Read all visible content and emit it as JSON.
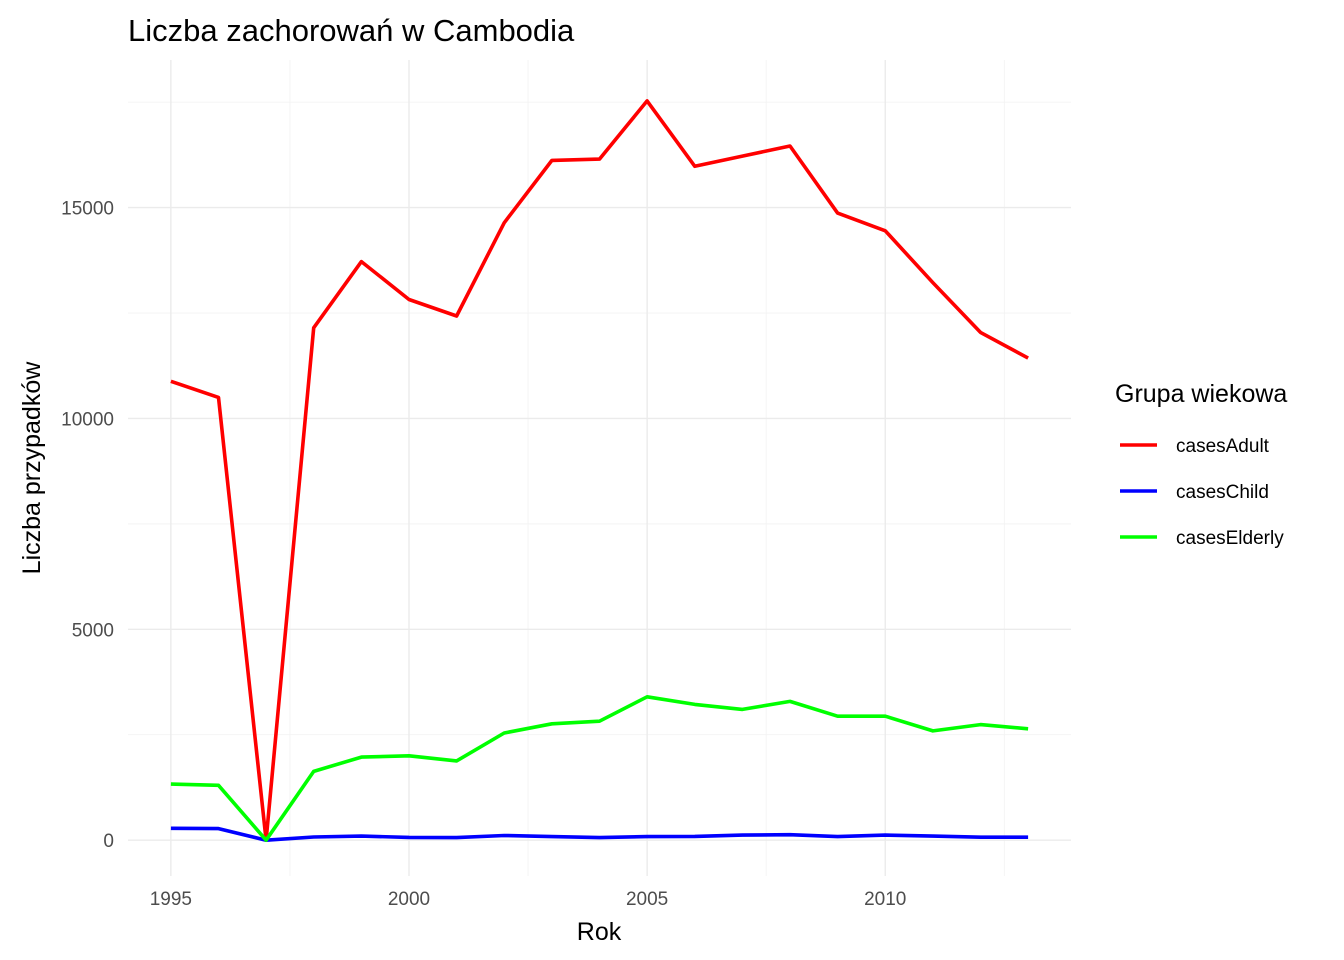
{
  "chart_data": {
    "type": "line",
    "title": "Liczba zachorowań w Cambodia",
    "xlabel": "Rok",
    "ylabel": "Liczba przypadków",
    "x": [
      1995,
      1996,
      1997,
      1998,
      1999,
      2000,
      2001,
      2002,
      2003,
      2004,
      2005,
      2006,
      2007,
      2008,
      2009,
      2010,
      2011,
      2012,
      2013
    ],
    "xlim": [
      1994.1,
      2013.9
    ],
    "ylim": [
      -850,
      18500
    ],
    "x_ticks": [
      1995,
      2000,
      2005,
      2010
    ],
    "y_ticks": [
      0,
      5000,
      10000,
      15000
    ],
    "x_tick_labels": [
      "1995",
      "2000",
      "2005",
      "2010"
    ],
    "y_tick_labels": [
      "0",
      "5000",
      "10000",
      "15000"
    ],
    "grid": true,
    "legend": {
      "title": "Grupa wiekowa",
      "position": "right"
    },
    "series": [
      {
        "name": "casesAdult",
        "color": "#ff0000",
        "values": [
          10880,
          10500,
          0,
          12150,
          13720,
          12820,
          12430,
          14640,
          16120,
          16150,
          17530,
          15980,
          16220,
          16460,
          14870,
          14450,
          13220,
          12040,
          11430
        ]
      },
      {
        "name": "casesChild",
        "color": "#0000ff",
        "values": [
          280,
          275,
          0,
          75,
          95,
          65,
          60,
          110,
          85,
          60,
          85,
          90,
          120,
          130,
          85,
          120,
          95,
          70,
          70
        ]
      },
      {
        "name": "casesElderly",
        "color": "#00ff00",
        "values": [
          1330,
          1300,
          0,
          1630,
          1970,
          2000,
          1880,
          2540,
          2760,
          2820,
          3400,
          3220,
          3100,
          3290,
          2940,
          2940,
          2590,
          2740,
          2640
        ]
      }
    ]
  }
}
